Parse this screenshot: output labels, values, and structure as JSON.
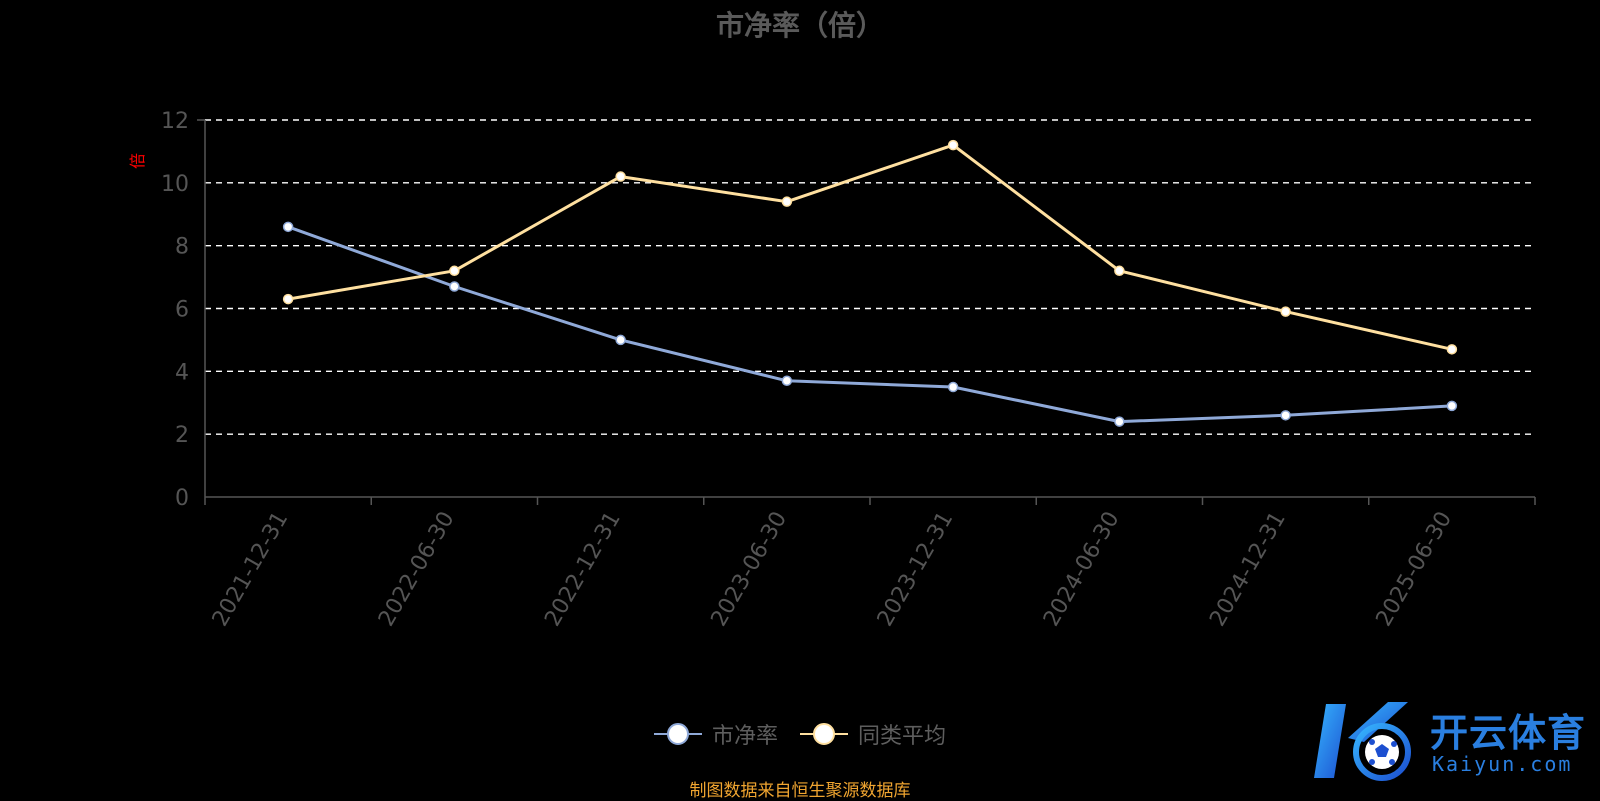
{
  "colors": {
    "background": "#000000",
    "grid": "#ffffff",
    "axis": "#555555",
    "tick_text": "#555555",
    "pb_series": "#8fa9d8",
    "peer_series": "#ffe0a0",
    "unit_text": "#ff0000",
    "source_text": "#f0a530",
    "watermark": "#2a7fe0"
  },
  "chart_data": {
    "type": "line",
    "title": "市净率（倍）",
    "ylabel": "倍",
    "categories": [
      "2021-12-31",
      "2022-06-30",
      "2022-12-31",
      "2023-06-30",
      "2023-12-31",
      "2024-06-30",
      "2024-12-31",
      "2025-06-30"
    ],
    "ylim": [
      0,
      12
    ],
    "yticks": [
      "0",
      "2",
      "4",
      "6",
      "8",
      "10",
      "12"
    ],
    "grid": true,
    "legend_position": "bottom-center",
    "series": [
      {
        "name": "市净率",
        "values": [
          8.6,
          6.7,
          5.0,
          3.7,
          3.5,
          2.4,
          2.6,
          2.9
        ]
      },
      {
        "name": "同类平均",
        "values": [
          6.3,
          7.2,
          10.2,
          9.4,
          11.2,
          7.2,
          5.9,
          4.7
        ]
      }
    ]
  },
  "source_note": "制图数据来自恒生聚源数据库",
  "watermark": {
    "brand": "开云体育",
    "domain": "Kaiyun.com",
    "icon": "kaiyun-soccer-logo"
  }
}
